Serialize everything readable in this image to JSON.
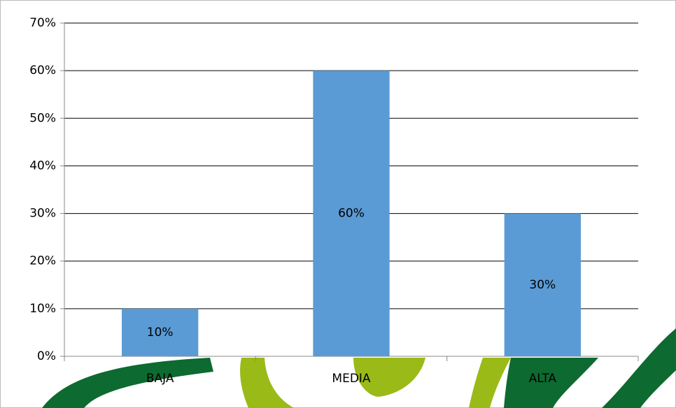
{
  "chart_data": {
    "type": "bar",
    "categories": [
      "BAJA",
      "MEDIA",
      "ALTA"
    ],
    "values": [
      10,
      60,
      30
    ],
    "value_labels": [
      "10%",
      "60%",
      "30%"
    ],
    "color": "#5b9bd5",
    "ylim": [
      0,
      70
    ],
    "yticks": [
      {
        "value": 0,
        "label": "0%"
      },
      {
        "value": 10,
        "label": "10%"
      },
      {
        "value": 20,
        "label": "20%"
      },
      {
        "value": 30,
        "label": "30%"
      },
      {
        "value": 40,
        "label": "40%"
      },
      {
        "value": 50,
        "label": "50%"
      },
      {
        "value": 60,
        "label": "60%"
      },
      {
        "value": 70,
        "label": "70%"
      }
    ],
    "grid": true
  }
}
